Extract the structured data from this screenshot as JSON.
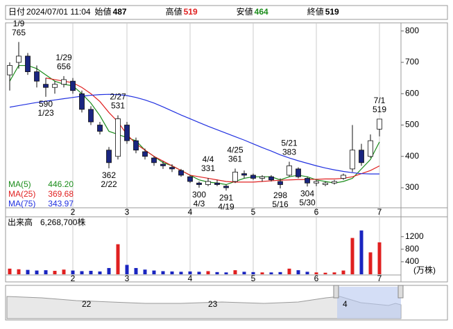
{
  "header": [
    {
      "label": "日付",
      "value": "2024/07/01 11:04"
    },
    {
      "label": "始値",
      "value": 487
    },
    {
      "label": "高値",
      "value": 519
    },
    {
      "label": "安値",
      "value": 464
    },
    {
      "label": "終値",
      "value": 519
    }
  ],
  "chart_data": {
    "type": "candlestick",
    "x": [
      "1/4",
      "1/9",
      "1/12",
      "1/17",
      "1/23",
      "1/26",
      "1/29",
      "2/1",
      "2/6",
      "2/9",
      "2/15",
      "2/22",
      "2/27",
      "3/1",
      "3/6",
      "3/11",
      "3/15",
      "3/19",
      "3/25",
      "3/28",
      "4/1",
      "4/3",
      "4/4",
      "4/10",
      "4/19",
      "4/25",
      "4/30",
      "5/1",
      "5/8",
      "5/13",
      "5/16",
      "5/21",
      "5/24",
      "5/30",
      "6/3",
      "6/7",
      "6/13",
      "6/19",
      "6/24",
      "6/26",
      "6/28",
      "7/1"
    ],
    "open": [
      660,
      700,
      720,
      670,
      630,
      620,
      630,
      640,
      600,
      550,
      500,
      420,
      400,
      500,
      450,
      415,
      395,
      375,
      365,
      355,
      335,
      315,
      310,
      315,
      305,
      320,
      345,
      340,
      330,
      335,
      320,
      340,
      360,
      330,
      315,
      310,
      315,
      330,
      360,
      420,
      400,
      487
    ],
    "high": [
      700,
      765,
      730,
      690,
      650,
      640,
      656,
      650,
      610,
      560,
      510,
      430,
      531,
      510,
      460,
      425,
      400,
      385,
      375,
      360,
      340,
      320,
      331,
      325,
      310,
      361,
      355,
      345,
      340,
      340,
      330,
      383,
      365,
      335,
      325,
      320,
      325,
      345,
      500,
      440,
      470,
      519
    ],
    "low": [
      610,
      680,
      660,
      620,
      590,
      600,
      620,
      600,
      540,
      500,
      470,
      362,
      390,
      440,
      410,
      390,
      370,
      360,
      350,
      335,
      315,
      300,
      305,
      305,
      291,
      315,
      330,
      325,
      320,
      320,
      298,
      335,
      330,
      304,
      305,
      305,
      310,
      325,
      350,
      370,
      395,
      464
    ],
    "close": [
      690,
      720,
      670,
      640,
      620,
      630,
      645,
      610,
      550,
      510,
      480,
      380,
      520,
      450,
      420,
      400,
      380,
      370,
      360,
      340,
      320,
      310,
      320,
      310,
      300,
      350,
      340,
      330,
      335,
      325,
      310,
      370,
      335,
      315,
      320,
      315,
      320,
      340,
      420,
      380,
      450,
      519
    ],
    "up_color": "#ffffff",
    "down_color": "#1a2580",
    "ylim": [
      236,
      826
    ],
    "yticks": [
      300,
      400,
      500,
      600,
      700,
      800
    ],
    "month_ticks": [
      {
        "value": "2/1",
        "label": "2"
      },
      {
        "value": "3/1",
        "label": "3"
      },
      {
        "value": "4/1",
        "label": "4"
      },
      {
        "value": "5/1",
        "label": "5"
      },
      {
        "value": "6/3",
        "label": "6"
      },
      {
        "value": "7/1",
        "label": "7"
      }
    ],
    "annotations": [
      {
        "date": "1/9",
        "value": 765
      },
      {
        "date": "1/23",
        "value": 590
      },
      {
        "date": "1/29",
        "value": 656
      },
      {
        "date": "2/22",
        "value": 362
      },
      {
        "date": "2/27",
        "value": 531
      },
      {
        "date": "4/3",
        "value": 300
      },
      {
        "date": "4/4",
        "value": 331
      },
      {
        "date": "4/19",
        "value": 291
      },
      {
        "date": "4/25",
        "value": 361
      },
      {
        "date": "5/16",
        "value": 298
      },
      {
        "date": "5/21",
        "value": 383
      },
      {
        "date": "5/30",
        "value": 304
      },
      {
        "date": "7/1",
        "value": 519
      }
    ],
    "series": [
      {
        "name": "MA(5)",
        "color": "#1a8c1a",
        "latest": {
          "value": 446.2,
          "label": "446.20"
        },
        "values": [
          640,
          690,
          690,
          680,
          660,
          640,
          630,
          625,
          600,
          570,
          530,
          480,
          470,
          460,
          450,
          420,
          400,
          380,
          370,
          355,
          340,
          325,
          318,
          315,
          310,
          320,
          330,
          335,
          335,
          335,
          325,
          335,
          340,
          335,
          325,
          320,
          315,
          320,
          330,
          360,
          390,
          446.2
        ]
      },
      {
        "name": "MA(25)",
        "color": "#e02020",
        "latest": {
          "value": 369.68,
          "label": "369.68"
        },
        "values": [
          null,
          null,
          null,
          null,
          650,
          645,
          640,
          635,
          620,
          600,
          575,
          540,
          510,
          470,
          440,
          420,
          400,
          385,
          370,
          355,
          340,
          335,
          330,
          325,
          320,
          318,
          318,
          318,
          320,
          322,
          324,
          325,
          326,
          326,
          327,
          328,
          328,
          330,
          335,
          345,
          355,
          369.68
        ]
      },
      {
        "name": "MA(75)",
        "color": "#2030e0",
        "latest": {
          "value": 343.97,
          "label": "343.97"
        },
        "values": [
          557,
          562,
          567,
          572,
          576,
          580,
          584,
          588,
          592,
          595,
          597,
          598,
          597,
          594,
          588,
          580,
          570,
          558,
          545,
          532,
          520,
          508,
          496,
          485,
          474,
          463,
          452,
          440,
          428,
          417,
          405,
          395,
          386,
          378,
          370,
          363,
          357,
          352,
          348,
          345,
          344,
          343.97
        ]
      }
    ],
    "volume": {
      "title": "出来高",
      "total": "6,268,700株",
      "unit": "(万株)",
      "ylim": [
        0,
        1460
      ],
      "yticks": [
        400,
        800,
        1200
      ],
      "up_color": "#e02020",
      "down_color": "#1a25c0",
      "values": [
        180,
        160,
        140,
        120,
        130,
        110,
        150,
        120,
        100,
        110,
        90,
        200,
        960,
        300,
        200,
        150,
        120,
        100,
        90,
        80,
        90,
        80,
        100,
        70,
        60,
        130,
        80,
        70,
        60,
        60,
        70,
        180,
        130,
        80,
        60,
        50,
        60,
        120,
        1160,
        1400,
        700,
        1020
      ]
    }
  },
  "navigator": {
    "labels": [
      "22",
      "23",
      "4"
    ]
  }
}
